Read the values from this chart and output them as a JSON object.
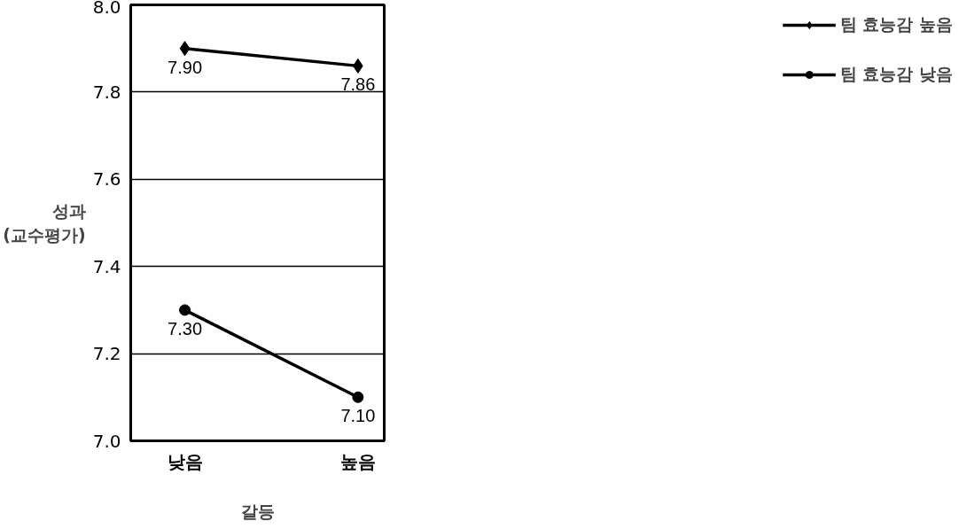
{
  "chart_data": {
    "type": "line",
    "xlabel": "갈등",
    "ylabel": "성과\n(교수평가)",
    "categories": [
      "낮음",
      "높음"
    ],
    "series": [
      {
        "name": "팀 효능감 높음",
        "color": "#000000",
        "marker": "diamond",
        "values": [
          7.9,
          7.86
        ],
        "value_labels": [
          "7.90",
          "7.86"
        ]
      },
      {
        "name": "팀 효능감 낮음",
        "color": "#000000",
        "marker": "circle",
        "values": [
          7.3,
          7.1
        ],
        "value_labels": [
          "7.30",
          "7.10"
        ]
      }
    ],
    "ylim": [
      7.0,
      8.0
    ],
    "yticks": [
      {
        "value": 7.0,
        "label": "7.0"
      },
      {
        "value": 7.2,
        "label": "7.2"
      },
      {
        "value": 7.4,
        "label": "7.4"
      },
      {
        "value": 7.6,
        "label": "7.6"
      },
      {
        "value": 7.8,
        "label": "7.8"
      },
      {
        "value": 8.0,
        "label": "8.0"
      }
    ],
    "grid": "y",
    "legend": "right",
    "line_style": "solid"
  }
}
